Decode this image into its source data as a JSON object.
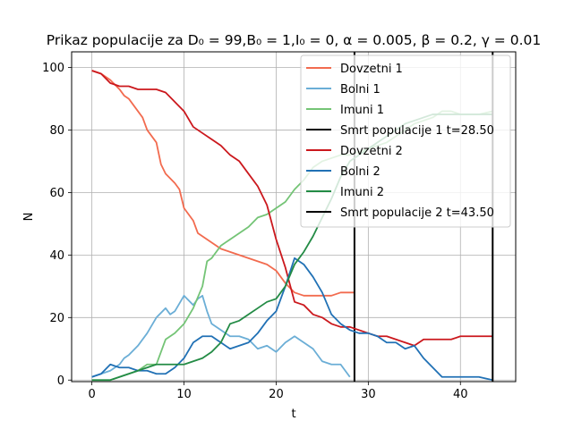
{
  "chart_data": {
    "type": "line",
    "title": "Prikaz populacije za D₀ = 99,B₀ = 1,I₀ = 0, α = 0.005, β = 0.2, γ = 0.01",
    "xlabel": "t",
    "ylabel": "N",
    "xlim": [
      -2.2,
      46
    ],
    "ylim": [
      -0.5,
      105
    ],
    "xticks": [
      "0",
      "10",
      "20",
      "30",
      "40"
    ],
    "xtick_values": [
      0,
      10,
      20,
      30,
      40
    ],
    "yticks": [
      "0",
      "20",
      "40",
      "60",
      "80",
      "100"
    ],
    "ytick_values": [
      0,
      20,
      40,
      60,
      80,
      100
    ],
    "grid": true,
    "legend_position": "top-right",
    "series": [
      {
        "name": "Dovzetni 1",
        "color": "#f26b4f",
        "x": [
          0,
          1,
          1.5,
          2,
          3,
          3.5,
          4,
          5,
          5.5,
          6,
          7,
          7.5,
          8,
          9,
          9.5,
          10,
          11,
          11.5,
          12,
          13,
          14,
          15,
          16,
          17,
          18,
          19,
          20,
          21,
          22,
          23,
          24,
          25,
          26,
          27,
          28.5
        ],
        "y": [
          99,
          98,
          97,
          96,
          93,
          91,
          90,
          86,
          84,
          80,
          76,
          69,
          66,
          63,
          61,
          55,
          51,
          47,
          46,
          44,
          42,
          41,
          40,
          39,
          38,
          37,
          35,
          31,
          28,
          27,
          27,
          27,
          27,
          28,
          28
        ]
      },
      {
        "name": "Bolni 1",
        "color": "#6baed6",
        "x": [
          0,
          1,
          2,
          3,
          3.5,
          4,
          5,
          6,
          7,
          8,
          8.5,
          9,
          10,
          11,
          11.5,
          12,
          12.5,
          13,
          14,
          15,
          16,
          17,
          18,
          19,
          20,
          21,
          22,
          23,
          24,
          25,
          26,
          27,
          28
        ],
        "y": [
          1,
          2,
          3,
          5,
          7,
          8,
          11,
          15,
          20,
          23,
          21,
          22,
          27,
          24,
          26,
          27,
          22,
          18,
          16,
          14,
          14,
          13,
          10,
          11,
          9,
          12,
          14,
          12,
          10,
          6,
          5,
          5,
          1
        ]
      },
      {
        "name": "Imuni 1",
        "color": "#74c476",
        "x": [
          0,
          2,
          3,
          4,
          5,
          6,
          7,
          8,
          9,
          10,
          11,
          12,
          12.5,
          13,
          14,
          15,
          16,
          17,
          18,
          19,
          20,
          21,
          22,
          23,
          24,
          25,
          26,
          27,
          28,
          29,
          30,
          31,
          32,
          33,
          34,
          35,
          36,
          37,
          38,
          39,
          40,
          41,
          42,
          43.5
        ],
        "y": [
          0,
          0,
          1,
          2,
          3,
          5,
          5,
          13,
          15,
          18,
          23,
          30,
          38,
          39,
          43,
          45,
          47,
          49,
          52,
          53,
          55,
          57,
          61,
          64,
          68,
          70,
          71,
          72,
          72,
          73,
          74,
          75,
          76,
          78,
          80,
          82,
          83,
          84,
          86,
          86,
          85,
          85,
          85,
          86
        ]
      },
      {
        "name": "Smrt populacije 1 t=28.50",
        "color": "#000000",
        "vline": 28.5
      },
      {
        "name": "Dovzetni 2",
        "color": "#cb181d",
        "x": [
          0,
          1,
          2,
          3,
          4,
          5,
          6,
          7,
          8,
          9,
          10,
          11,
          12,
          13,
          14,
          15,
          16,
          17,
          18,
          19,
          20,
          21,
          22,
          23,
          24,
          25,
          26,
          27,
          28,
          29,
          30,
          31,
          32,
          33,
          34,
          35,
          36,
          37,
          38,
          39,
          40,
          41,
          42,
          43.5
        ],
        "y": [
          99,
          98,
          95,
          94,
          94,
          93,
          93,
          93,
          92,
          89,
          86,
          81,
          79,
          77,
          75,
          72,
          70,
          66,
          62,
          56,
          45,
          36,
          25,
          24,
          21,
          20,
          18,
          17,
          17,
          16,
          15,
          14,
          14,
          13,
          12,
          11,
          13,
          13,
          13,
          13,
          14,
          14,
          14,
          14
        ]
      },
      {
        "name": "Bolni 2",
        "color": "#2171b5",
        "x": [
          0,
          1,
          2,
          3,
          4,
          5,
          6,
          7,
          8,
          9,
          10,
          11,
          12,
          13,
          14,
          15,
          16,
          17,
          18,
          19,
          20,
          21,
          22,
          23,
          24,
          25,
          26,
          27,
          28,
          29,
          30,
          31,
          32,
          33,
          34,
          35,
          36,
          37,
          38,
          39,
          40,
          41,
          42,
          43.5
        ],
        "y": [
          1,
          2,
          5,
          4,
          4,
          3,
          3,
          2,
          2,
          4,
          7,
          12,
          14,
          14,
          12,
          10,
          11,
          12,
          15,
          19,
          22,
          30,
          39,
          37,
          33,
          28,
          21,
          18,
          16,
          15,
          15,
          14,
          12,
          12,
          10,
          11,
          7,
          4,
          1,
          1,
          1,
          1,
          1,
          0
        ]
      },
      {
        "name": "Imuni 2",
        "color": "#238b45",
        "x": [
          0,
          1,
          2,
          3,
          4,
          5,
          6,
          7,
          8,
          9,
          10,
          11,
          12,
          13,
          14,
          15,
          16,
          17,
          18,
          19,
          20,
          21,
          22,
          23,
          24,
          25,
          26,
          27,
          28,
          29,
          30,
          31,
          32,
          33,
          34,
          35,
          36,
          37,
          38,
          39,
          40,
          41,
          42,
          43.5
        ],
        "y": [
          0,
          0,
          0,
          1,
          2,
          3,
          4,
          5,
          5,
          5,
          5,
          6,
          7,
          9,
          12,
          18,
          19,
          21,
          23,
          25,
          26,
          30,
          37,
          41,
          46,
          52,
          58,
          65,
          70,
          72,
          74,
          76,
          78,
          80,
          82,
          83,
          84,
          85,
          85,
          85,
          85,
          85,
          85,
          85
        ]
      },
      {
        "name": "Smrt populacije 2 t=43.50",
        "color": "#000000",
        "vline": 43.5
      }
    ]
  }
}
